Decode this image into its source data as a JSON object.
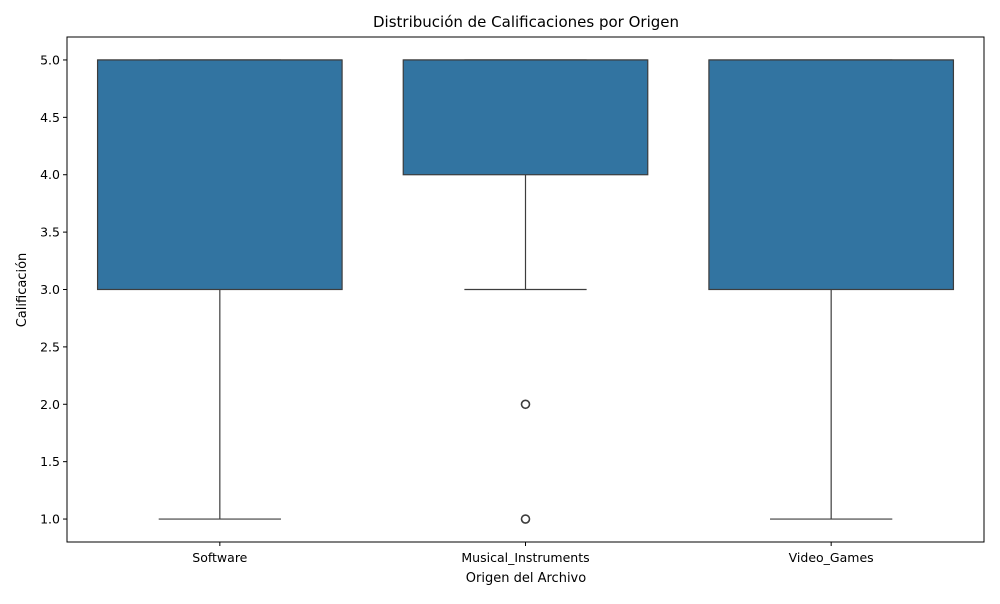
{
  "chart_data": {
    "type": "box",
    "title": "Distribución de Calificaciones por Origen",
    "xlabel": "Origen del Archivo",
    "ylabel": "Calificación",
    "ylim": [
      0.8,
      5.2
    ],
    "yticks": [
      1.0,
      1.5,
      2.0,
      2.5,
      3.0,
      3.5,
      4.0,
      4.5,
      5.0
    ],
    "ytick_labels": [
      "1.0",
      "1.5",
      "2.0",
      "2.5",
      "3.0",
      "3.5",
      "4.0",
      "4.5",
      "5.0"
    ],
    "categories": [
      "Software",
      "Musical_Instruments",
      "Video_Games"
    ],
    "boxes": [
      {
        "category": "Software",
        "whisker_low": 1.0,
        "q1": 3.0,
        "median": 5.0,
        "q3": 5.0,
        "whisker_high": 5.0,
        "outliers": []
      },
      {
        "category": "Musical_Instruments",
        "whisker_low": 3.0,
        "q1": 4.0,
        "median": 5.0,
        "q3": 5.0,
        "whisker_high": 5.0,
        "outliers": [
          1.0,
          2.0
        ]
      },
      {
        "category": "Video_Games",
        "whisker_low": 1.0,
        "q1": 3.0,
        "median": 5.0,
        "q3": 5.0,
        "whisker_high": 5.0,
        "outliers": []
      }
    ],
    "box_color": "#3274a1",
    "line_color": "#3d3d3d",
    "grid": false,
    "legend": "none"
  }
}
